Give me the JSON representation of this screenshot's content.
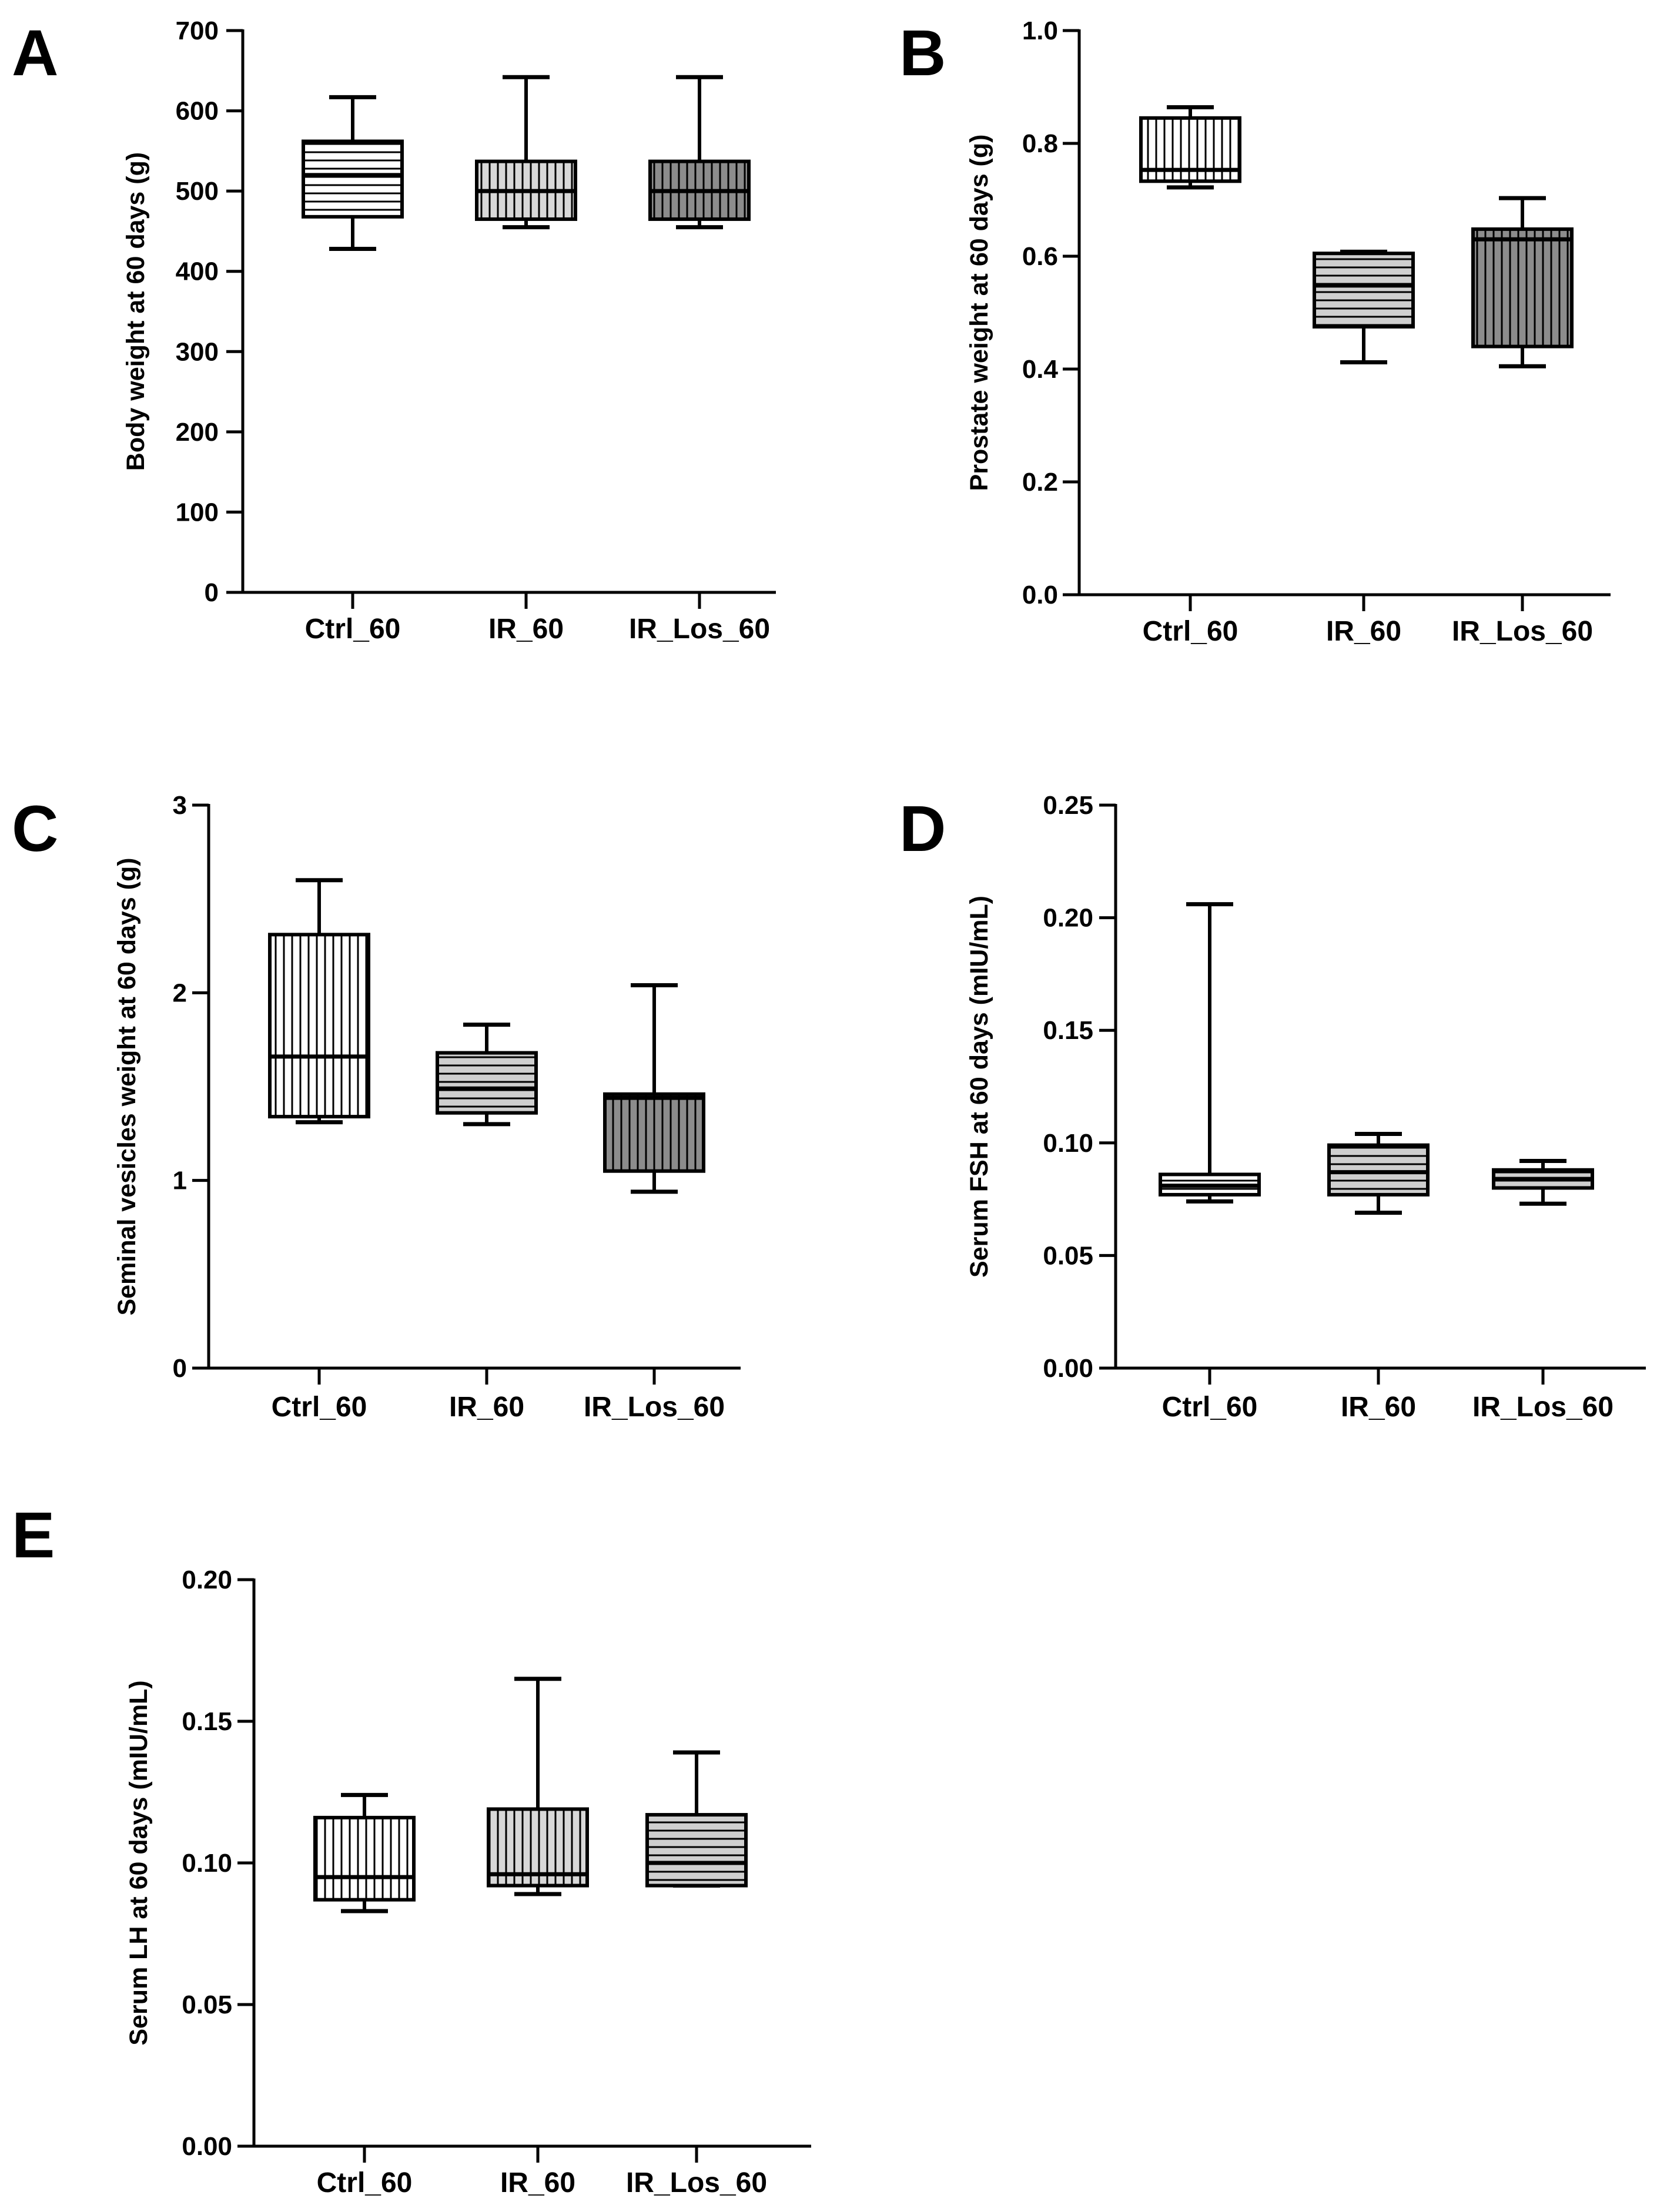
{
  "chart_data": [
    {
      "type": "box",
      "panel": "A",
      "ylabel": "Body weight at 60 days (g)",
      "ylim": [
        0,
        700
      ],
      "yticks": [
        "0",
        "100",
        "200",
        "300",
        "400",
        "500",
        "600",
        "700"
      ],
      "categories": [
        "Ctrl_60",
        "IR_60",
        "IR_Los_60"
      ],
      "boxes": [
        {
          "min": 428,
          "q1": 468,
          "median": 520,
          "q3": 562,
          "max": 617
        },
        {
          "min": 455,
          "q1": 465,
          "median": 500,
          "q3": 537,
          "max": 642
        },
        {
          "min": 455,
          "q1": 465,
          "median": 500,
          "q3": 537,
          "max": 642
        }
      ]
    },
    {
      "type": "box",
      "panel": "B",
      "ylabel": "Prostate weight at 60 days (g)",
      "ylim": [
        0,
        1
      ],
      "yticks": [
        "0.0",
        "0.2",
        "0.4",
        "0.6",
        "0.8",
        "1.0"
      ],
      "categories": [
        "Ctrl_60",
        "IR_60",
        "IR_Los_60"
      ],
      "boxes": [
        {
          "min": 0.722,
          "q1": 0.733,
          "median": 0.753,
          "q3": 0.845,
          "max": 0.864
        },
        {
          "min": 0.412,
          "q1": 0.475,
          "median": 0.548,
          "q3": 0.605,
          "max": 0.608
        },
        {
          "min": 0.405,
          "q1": 0.44,
          "median": 0.63,
          "q3": 0.648,
          "max": 0.703
        }
      ]
    },
    {
      "type": "box",
      "panel": "C",
      "ylabel": "Seminal vesicles weight at 60 days (g)",
      "ylim": [
        0,
        3
      ],
      "yticks": [
        "0",
        "1",
        "2",
        "3"
      ],
      "categories": [
        "Ctrl_60",
        "IR_60",
        "IR_Los_60"
      ],
      "boxes": [
        {
          "min": 1.31,
          "q1": 1.34,
          "median": 1.66,
          "q3": 2.31,
          "max": 2.6
        },
        {
          "min": 1.3,
          "q1": 1.36,
          "median": 1.49,
          "q3": 1.68,
          "max": 1.83
        },
        {
          "min": 0.94,
          "q1": 1.05,
          "median": 1.44,
          "q3": 1.46,
          "max": 2.04
        }
      ]
    },
    {
      "type": "box",
      "panel": "D",
      "ylabel": "Serum FSH at 60 days (mIU/mL)",
      "ylim": [
        0,
        0.25
      ],
      "yticks": [
        "0.00",
        "0.05",
        "0.10",
        "0.15",
        "0.20",
        "0.25"
      ],
      "categories": [
        "Ctrl_60",
        "IR_60",
        "IR_Los_60"
      ],
      "boxes": [
        {
          "min": 0.074,
          "q1": 0.077,
          "median": 0.081,
          "q3": 0.086,
          "max": 0.206
        },
        {
          "min": 0.069,
          "q1": 0.077,
          "median": 0.087,
          "q3": 0.099,
          "max": 0.104
        },
        {
          "min": 0.073,
          "q1": 0.08,
          "median": 0.084,
          "q3": 0.088,
          "max": 0.092
        }
      ]
    },
    {
      "type": "box",
      "panel": "E",
      "ylabel": "Serum LH at 60 days (mIU/mL)",
      "ylim": [
        0,
        0.2
      ],
      "yticks": [
        "0.00",
        "0.05",
        "0.10",
        "0.15",
        "0.20"
      ],
      "categories": [
        "Ctrl_60",
        "IR_60",
        "IR_Los_60"
      ],
      "boxes": [
        {
          "min": 0.083,
          "q1": 0.087,
          "median": 0.095,
          "q3": 0.116,
          "max": 0.124
        },
        {
          "min": 0.089,
          "q1": 0.092,
          "median": 0.096,
          "q3": 0.119,
          "max": 0.165
        },
        {
          "min": 0.092,
          "q1": 0.092,
          "median": 0.1,
          "q3": 0.117,
          "max": 0.139
        }
      ]
    }
  ]
}
